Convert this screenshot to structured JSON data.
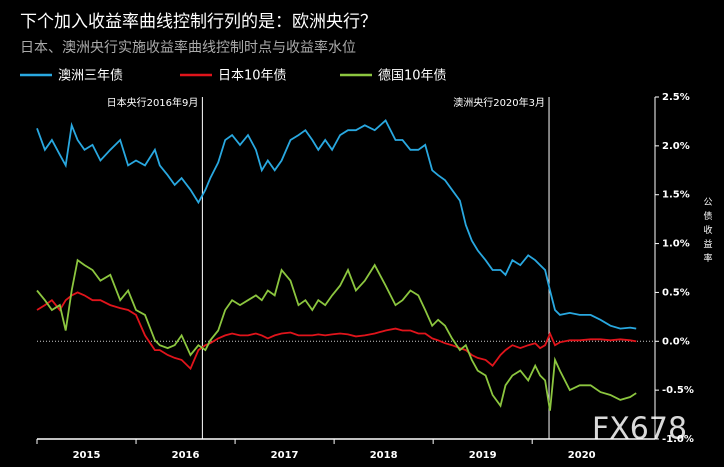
{
  "chart_data": {
    "type": "line",
    "title": "下个加入收益率曲线控制行列的是：欧洲央行？",
    "subtitle": "日本、澳洲央行实施收益率曲线控制时点与收益率水位",
    "y_axis_label": "公债收益率",
    "watermark": "FX678",
    "x": [
      2015.0,
      2015.08,
      2015.15,
      2015.23,
      2015.29,
      2015.35,
      2015.41,
      2015.48,
      2015.56,
      2015.64,
      2015.74,
      2015.84,
      2015.92,
      2016.0,
      2016.09,
      2016.19,
      2016.24,
      2016.32,
      2016.39,
      2016.46,
      2016.55,
      2016.63,
      2016.7,
      2016.75,
      2016.83,
      2016.9,
      2016.97,
      2017.05,
      2017.13,
      2017.21,
      2017.27,
      2017.33,
      2017.4,
      2017.47,
      2017.56,
      2017.64,
      2017.71,
      2017.78,
      2017.84,
      2017.91,
      2017.98,
      2018.06,
      2018.14,
      2018.22,
      2018.31,
      2018.41,
      2018.52,
      2018.62,
      2018.69,
      2018.77,
      2018.85,
      2018.92,
      2018.99,
      2019.05,
      2019.12,
      2019.19,
      2019.27,
      2019.33,
      2019.39,
      2019.45,
      2019.53,
      2019.6,
      2019.68,
      2019.73,
      2019.8,
      2019.88,
      2019.96,
      2020.03,
      2020.08,
      2020.13,
      2020.18,
      2020.23,
      2020.28,
      2020.38,
      2020.48,
      2020.59,
      2020.69,
      2020.79,
      2020.89,
      2020.99,
      2021.05
    ],
    "series": [
      {
        "name": "澳洲三年债",
        "color": "#29a8e0",
        "values": [
          2.18,
          1.96,
          2.06,
          1.91,
          1.8,
          2.21,
          2.06,
          1.96,
          2.01,
          1.85,
          1.96,
          2.06,
          1.8,
          1.85,
          1.8,
          1.96,
          1.8,
          1.7,
          1.6,
          1.67,
          1.55,
          1.42,
          1.55,
          1.67,
          1.83,
          2.06,
          2.11,
          2.01,
          2.11,
          1.96,
          1.75,
          1.85,
          1.75,
          1.85,
          2.06,
          2.11,
          2.16,
          2.06,
          1.96,
          2.06,
          1.96,
          2.11,
          2.16,
          2.16,
          2.21,
          2.16,
          2.26,
          2.06,
          2.06,
          1.96,
          1.96,
          2.01,
          1.75,
          1.7,
          1.65,
          1.55,
          1.44,
          1.19,
          1.03,
          0.93,
          0.83,
          0.73,
          0.73,
          0.68,
          0.83,
          0.78,
          0.88,
          0.83,
          0.78,
          0.73,
          0.52,
          0.32,
          0.27,
          0.29,
          0.27,
          0.27,
          0.22,
          0.16,
          0.13,
          0.14,
          0.13
        ]
      },
      {
        "name": "日本10年债",
        "color": "#e0141b",
        "values": [
          0.32,
          0.37,
          0.42,
          0.32,
          0.42,
          0.47,
          0.5,
          0.47,
          0.42,
          0.42,
          0.37,
          0.34,
          0.32,
          0.27,
          0.06,
          -0.09,
          -0.09,
          -0.14,
          -0.17,
          -0.19,
          -0.28,
          -0.09,
          -0.04,
          -0.02,
          0.03,
          0.06,
          0.08,
          0.06,
          0.06,
          0.08,
          0.06,
          0.03,
          0.06,
          0.08,
          0.09,
          0.06,
          0.06,
          0.06,
          0.07,
          0.06,
          0.07,
          0.08,
          0.07,
          0.05,
          0.06,
          0.08,
          0.11,
          0.13,
          0.11,
          0.11,
          0.08,
          0.08,
          0.03,
          0.01,
          -0.02,
          -0.04,
          -0.07,
          -0.09,
          -0.14,
          -0.17,
          -0.19,
          -0.25,
          -0.14,
          -0.09,
          -0.04,
          -0.07,
          -0.04,
          -0.02,
          -0.07,
          -0.04,
          0.08,
          -0.04,
          -0.01,
          0.01,
          0.01,
          0.02,
          0.02,
          0.01,
          0.02,
          0.01,
          0.0
        ]
      },
      {
        "name": "德国10年债",
        "color": "#8cc63f",
        "values": [
          0.52,
          0.42,
          0.32,
          0.37,
          0.11,
          0.52,
          0.83,
          0.78,
          0.73,
          0.62,
          0.68,
          0.42,
          0.52,
          0.32,
          0.27,
          0.01,
          -0.04,
          -0.07,
          -0.04,
          0.06,
          -0.14,
          -0.04,
          -0.09,
          0.01,
          0.11,
          0.32,
          0.42,
          0.37,
          0.42,
          0.47,
          0.42,
          0.52,
          0.47,
          0.73,
          0.62,
          0.37,
          0.42,
          0.32,
          0.42,
          0.37,
          0.47,
          0.57,
          0.73,
          0.52,
          0.62,
          0.78,
          0.57,
          0.37,
          0.42,
          0.52,
          0.47,
          0.32,
          0.16,
          0.22,
          0.16,
          0.03,
          -0.09,
          -0.04,
          -0.19,
          -0.3,
          -0.35,
          -0.55,
          -0.66,
          -0.45,
          -0.35,
          -0.3,
          -0.4,
          -0.25,
          -0.35,
          -0.4,
          -0.71,
          -0.19,
          -0.3,
          -0.5,
          -0.45,
          -0.45,
          -0.52,
          -0.55,
          -0.6,
          -0.57,
          -0.53
        ]
      }
    ],
    "annotations": [
      {
        "x": 2016.67,
        "label": "日本央行2016年9月"
      },
      {
        "x": 2020.17,
        "label": "澳洲央行2020年3月"
      }
    ],
    "xlim": [
      2015,
      2021.24
    ],
    "xticks": [
      2015,
      2016,
      2017,
      2018,
      2019,
      2020
    ],
    "ylim": [
      -1,
      2.5
    ],
    "yticks": [
      {
        "value": -1,
        "label": "-1.0%"
      },
      {
        "value": -0.5,
        "label": "-0.5%"
      },
      {
        "value": 0,
        "label": "0.0%"
      },
      {
        "value": 0.5,
        "label": "0.5%"
      },
      {
        "value": 1,
        "label": "1.0%"
      },
      {
        "value": 1.5,
        "label": "1.5%"
      },
      {
        "value": 2,
        "label": "2.0%"
      },
      {
        "value": 2.5,
        "label": "2.5%"
      }
    ],
    "zero_line": true,
    "legend_position": "top-left"
  }
}
